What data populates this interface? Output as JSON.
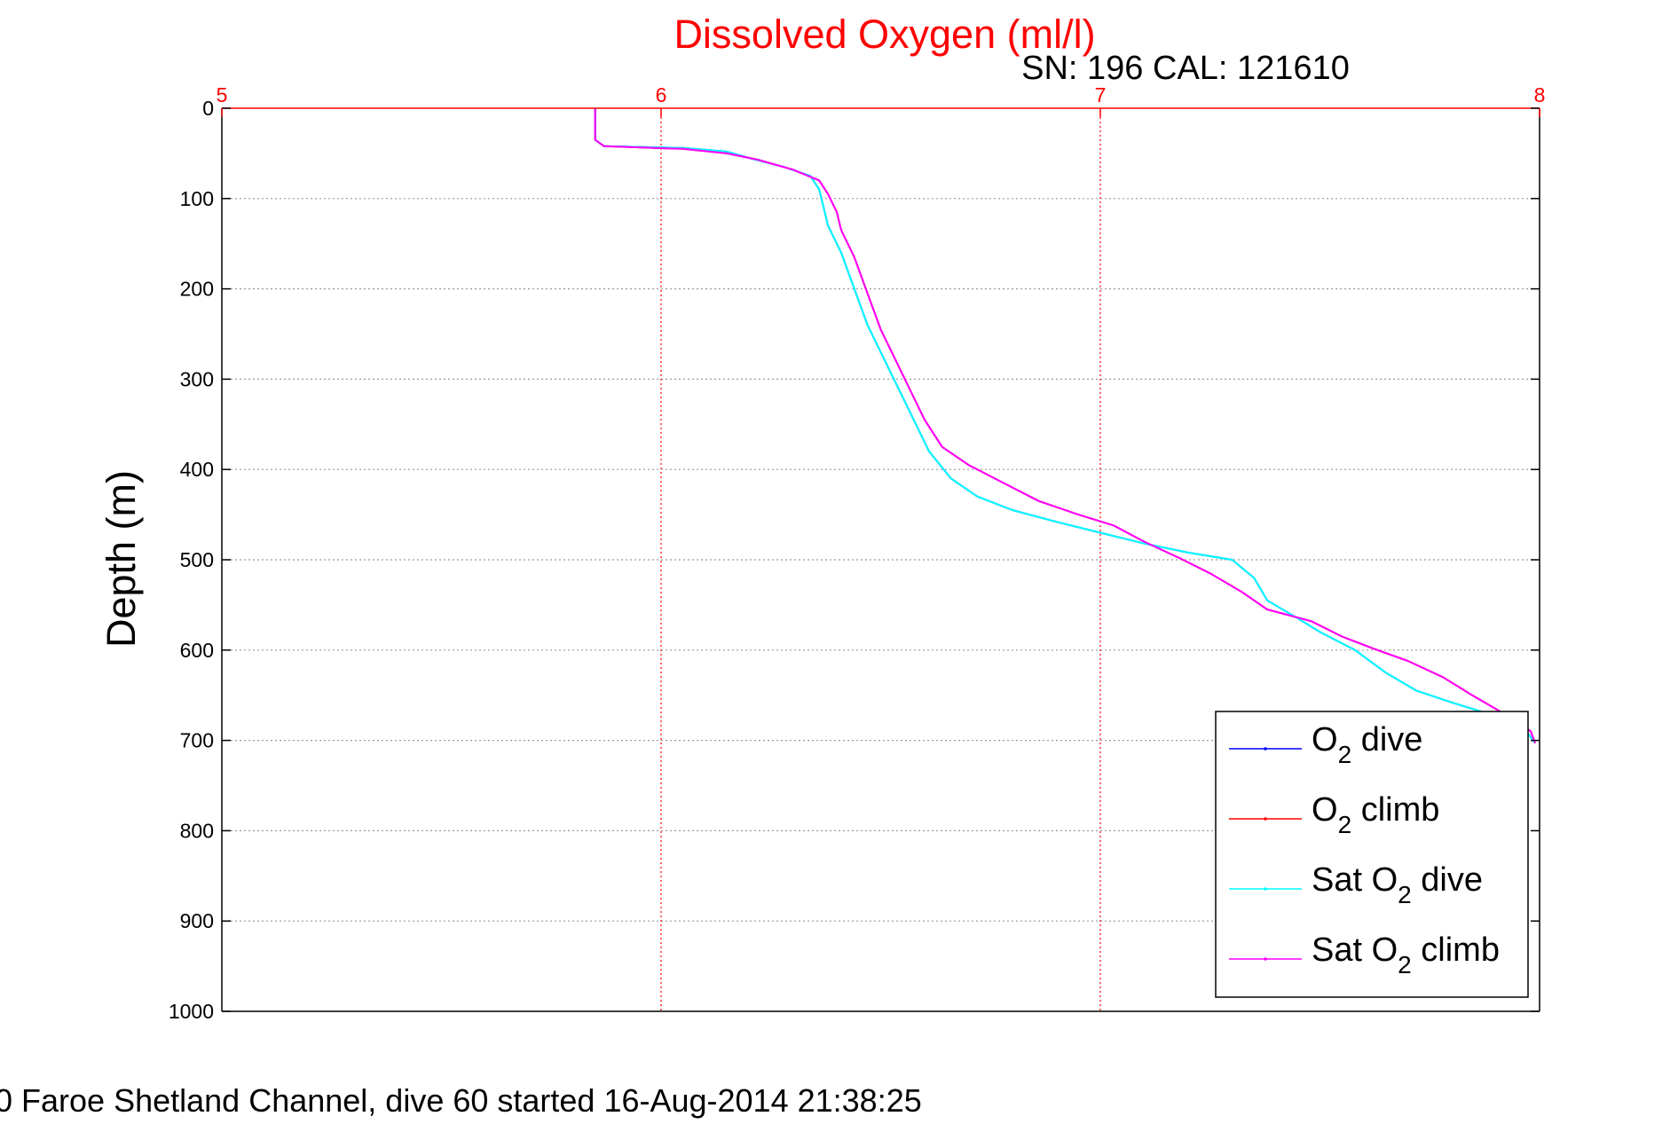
{
  "chart_data": {
    "type": "line",
    "title": "Dissolved Oxygen (ml/l)",
    "subtitle": "SN: 196  CAL: 121610",
    "footer": "0 Faroe Shetland Channel, dive 60 started 16-Aug-2014 21:38:25",
    "xlabel": "",
    "ylabel": "Depth (m)",
    "xlim": [
      5,
      8
    ],
    "ylim": [
      0,
      1000
    ],
    "y_reversed": true,
    "x_axis_position": "top",
    "x_ticks": [
      5,
      6,
      7,
      8
    ],
    "y_ticks": [
      0,
      100,
      200,
      300,
      400,
      500,
      600,
      700,
      800,
      900,
      1000
    ],
    "grid": true,
    "legend_position": "bottom-right",
    "colors": {
      "title": "#ff0000",
      "x_axis": "#ff0000",
      "grid": "#9a9a9a",
      "o2_dive": "#0000ff",
      "o2_climb": "#ff0000",
      "sat_o2_dive": "#00ffff",
      "sat_o2_climb": "#ff00ff"
    },
    "series": [
      {
        "name": "O2 dive",
        "label_main": "O",
        "label_sub": "2",
        "label_rest": " dive",
        "color": "#0000ff",
        "points": [
          [
            5.85,
            0
          ],
          [
            5.85,
            35
          ],
          [
            5.87,
            42
          ],
          [
            6.05,
            44
          ],
          [
            6.15,
            48
          ],
          [
            6.2,
            55
          ],
          [
            6.28,
            65
          ],
          [
            6.34,
            75
          ],
          [
            6.36,
            90
          ],
          [
            6.37,
            110
          ],
          [
            6.38,
            130
          ],
          [
            6.41,
            160
          ],
          [
            6.44,
            200
          ],
          [
            6.47,
            240
          ],
          [
            6.5,
            270
          ],
          [
            6.53,
            300
          ],
          [
            6.57,
            340
          ],
          [
            6.61,
            380
          ],
          [
            6.66,
            410
          ],
          [
            6.72,
            430
          ],
          [
            6.8,
            445
          ],
          [
            6.9,
            458
          ],
          [
            7.0,
            470
          ],
          [
            7.1,
            482
          ],
          [
            7.2,
            492
          ],
          [
            7.3,
            500
          ],
          [
            7.35,
            520
          ],
          [
            7.38,
            545
          ],
          [
            7.45,
            565
          ],
          [
            7.5,
            580
          ],
          [
            7.58,
            600
          ],
          [
            7.65,
            625
          ],
          [
            7.72,
            645
          ],
          [
            7.8,
            658
          ],
          [
            7.88,
            670
          ],
          [
            7.97,
            690
          ],
          [
            7.99,
            703
          ]
        ]
      },
      {
        "name": "O2 climb",
        "label_main": "O",
        "label_sub": "2",
        "label_rest": " climb",
        "color": "#ff0000",
        "points": [
          [
            5.85,
            0
          ],
          [
            5.85,
            35
          ],
          [
            5.87,
            42
          ],
          [
            6.05,
            45
          ],
          [
            6.15,
            50
          ],
          [
            6.22,
            57
          ],
          [
            6.3,
            68
          ],
          [
            6.36,
            80
          ],
          [
            6.38,
            95
          ],
          [
            6.4,
            115
          ],
          [
            6.41,
            135
          ],
          [
            6.44,
            165
          ],
          [
            6.47,
            205
          ],
          [
            6.5,
            245
          ],
          [
            6.53,
            275
          ],
          [
            6.56,
            305
          ],
          [
            6.6,
            345
          ],
          [
            6.64,
            375
          ],
          [
            6.7,
            395
          ],
          [
            6.78,
            415
          ],
          [
            6.86,
            435
          ],
          [
            6.95,
            450
          ],
          [
            7.03,
            462
          ],
          [
            7.1,
            480
          ],
          [
            7.18,
            498
          ],
          [
            7.25,
            515
          ],
          [
            7.32,
            535
          ],
          [
            7.38,
            555
          ],
          [
            7.48,
            568
          ],
          [
            7.55,
            585
          ],
          [
            7.62,
            598
          ],
          [
            7.7,
            612
          ],
          [
            7.78,
            630
          ],
          [
            7.84,
            648
          ],
          [
            7.9,
            665
          ],
          [
            7.98,
            690
          ],
          [
            7.99,
            703
          ]
        ]
      },
      {
        "name": "Sat O2 dive",
        "label_main": "Sat O",
        "label_sub": "2",
        "label_rest": " dive",
        "color": "#00ffff",
        "points": [
          [
            5.85,
            0
          ],
          [
            5.85,
            35
          ],
          [
            5.87,
            42
          ],
          [
            6.05,
            44
          ],
          [
            6.15,
            48
          ],
          [
            6.2,
            55
          ],
          [
            6.28,
            65
          ],
          [
            6.34,
            75
          ],
          [
            6.36,
            90
          ],
          [
            6.37,
            110
          ],
          [
            6.38,
            130
          ],
          [
            6.41,
            160
          ],
          [
            6.44,
            200
          ],
          [
            6.47,
            240
          ],
          [
            6.5,
            270
          ],
          [
            6.53,
            300
          ],
          [
            6.57,
            340
          ],
          [
            6.61,
            380
          ],
          [
            6.66,
            410
          ],
          [
            6.72,
            430
          ],
          [
            6.8,
            445
          ],
          [
            6.9,
            458
          ],
          [
            7.0,
            470
          ],
          [
            7.1,
            482
          ],
          [
            7.2,
            492
          ],
          [
            7.3,
            500
          ],
          [
            7.35,
            520
          ],
          [
            7.38,
            545
          ],
          [
            7.45,
            565
          ],
          [
            7.5,
            580
          ],
          [
            7.58,
            600
          ],
          [
            7.65,
            625
          ],
          [
            7.72,
            645
          ],
          [
            7.8,
            658
          ],
          [
            7.88,
            670
          ],
          [
            7.97,
            690
          ],
          [
            7.99,
            703
          ]
        ]
      },
      {
        "name": "Sat O2 climb",
        "label_main": "Sat O",
        "label_sub": "2",
        "label_rest": " climb",
        "color": "#ff00ff",
        "points": [
          [
            5.85,
            0
          ],
          [
            5.85,
            35
          ],
          [
            5.87,
            42
          ],
          [
            6.05,
            45
          ],
          [
            6.15,
            50
          ],
          [
            6.22,
            57
          ],
          [
            6.3,
            68
          ],
          [
            6.36,
            80
          ],
          [
            6.38,
            95
          ],
          [
            6.4,
            115
          ],
          [
            6.41,
            135
          ],
          [
            6.44,
            165
          ],
          [
            6.47,
            205
          ],
          [
            6.5,
            245
          ],
          [
            6.53,
            275
          ],
          [
            6.56,
            305
          ],
          [
            6.6,
            345
          ],
          [
            6.64,
            375
          ],
          [
            6.7,
            395
          ],
          [
            6.78,
            415
          ],
          [
            6.86,
            435
          ],
          [
            6.95,
            450
          ],
          [
            7.03,
            462
          ],
          [
            7.1,
            480
          ],
          [
            7.18,
            498
          ],
          [
            7.25,
            515
          ],
          [
            7.32,
            535
          ],
          [
            7.38,
            555
          ],
          [
            7.48,
            568
          ],
          [
            7.55,
            585
          ],
          [
            7.62,
            598
          ],
          [
            7.7,
            612
          ],
          [
            7.78,
            630
          ],
          [
            7.84,
            648
          ],
          [
            7.9,
            665
          ],
          [
            7.98,
            690
          ],
          [
            7.99,
            703
          ]
        ]
      }
    ]
  }
}
